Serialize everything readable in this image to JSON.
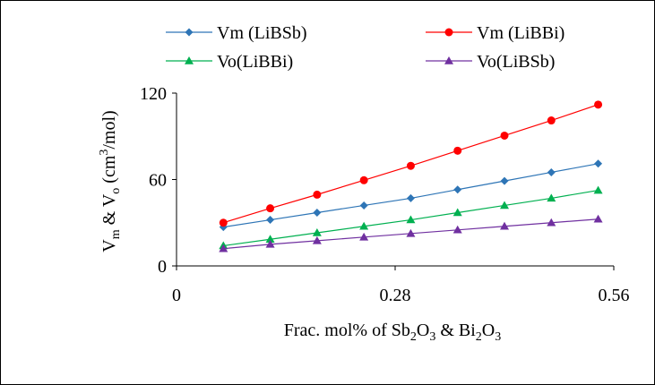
{
  "chart_data": {
    "type": "line",
    "x": [
      0.06,
      0.12,
      0.18,
      0.24,
      0.3,
      0.36,
      0.42,
      0.48,
      0.54
    ],
    "series": [
      {
        "name": "Vm (LiBSb)",
        "color": "#2e75b6",
        "marker": "diamond",
        "values": [
          27,
          32,
          37,
          42,
          47,
          53,
          59,
          65,
          71
        ]
      },
      {
        "name": "Vm (LiBBi)",
        "color": "#ff0000",
        "marker": "circle",
        "values": [
          30,
          40,
          49.5,
          59.5,
          69.5,
          80,
          90.5,
          101,
          112
        ]
      },
      {
        "name": "Vo(LiBBi)",
        "color": "#00b050",
        "marker": "triangle",
        "values": [
          14,
          18.5,
          23,
          27.5,
          32,
          37,
          42,
          47,
          52.5
        ]
      },
      {
        "name": "Vo(LiBSb)",
        "color": "#7030a0",
        "marker": "triangle",
        "values": [
          12,
          15,
          17.5,
          20,
          22.5,
          25,
          27.5,
          30,
          32.5
        ]
      }
    ],
    "xlim": [
      0,
      0.56
    ],
    "ylim": [
      0,
      120
    ],
    "xticks": [
      0,
      0.28,
      0.56
    ],
    "xtick_labels": [
      "0",
      "0.28",
      "0.56"
    ],
    "yticks": [
      0,
      60,
      120
    ],
    "ytick_labels": [
      "0",
      "60",
      "120"
    ],
    "xlabel": {
      "parts": [
        {
          "t": "Frac. mol% of Sb"
        },
        {
          "t": "2",
          "sub": true
        },
        {
          "t": "O"
        },
        {
          "t": "3",
          "sub": true
        },
        {
          "t": " & Bi"
        },
        {
          "t": "2",
          "sub": true
        },
        {
          "t": "O"
        },
        {
          "t": "3",
          "sub": true
        }
      ]
    },
    "ylabel": {
      "parts": [
        {
          "t": "V"
        },
        {
          "t": "m",
          "sub": true
        },
        {
          "t": " & V"
        },
        {
          "t": "o",
          "sub": true
        },
        {
          "t": " (cm"
        },
        {
          "t": "3",
          "sup": true
        },
        {
          "t": "/mol)"
        }
      ]
    },
    "grid": false,
    "legend": "top"
  }
}
